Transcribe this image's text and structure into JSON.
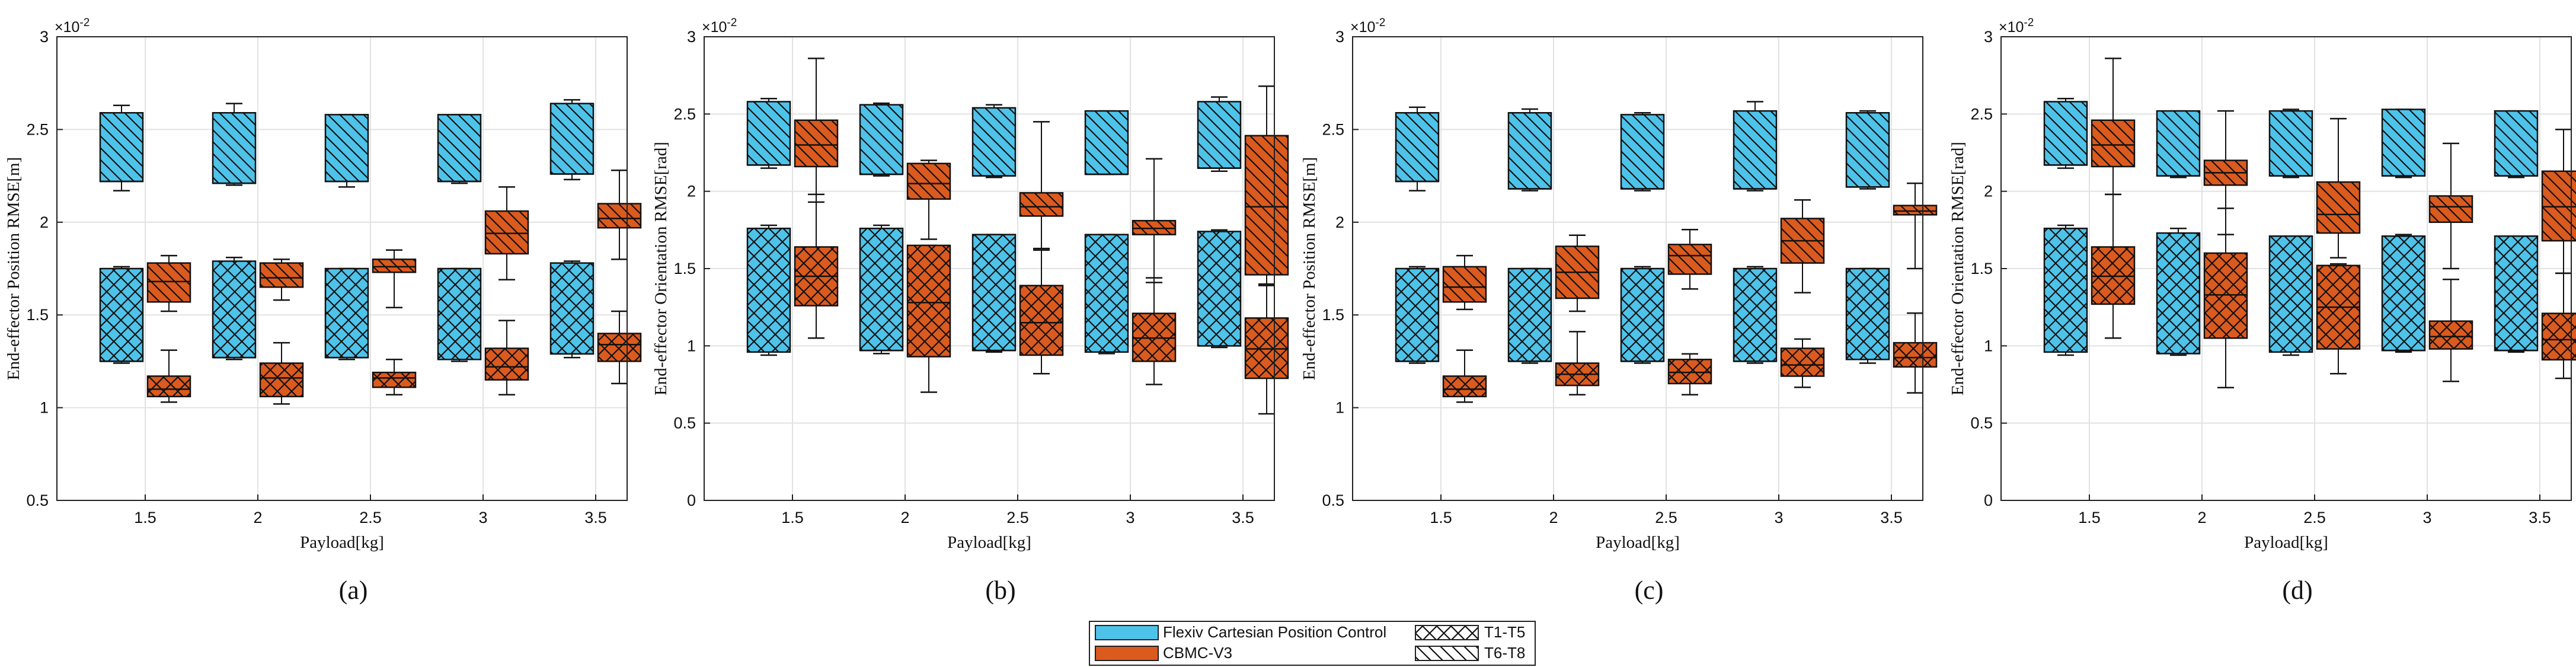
{
  "colors": {
    "flexiv": "#4ec3ea",
    "cbmc": "#db5a1e",
    "frame": "#222222",
    "grid": "#e2e2e2",
    "text": "#111111"
  },
  "legend": {
    "items": [
      {
        "label": "Flexiv Cartesian Position Control",
        "swatch": "flexiv"
      },
      {
        "label": "CBMC-V3",
        "swatch": "cbmc"
      },
      {
        "label": "T1-T5",
        "swatch": "hatch-cross"
      },
      {
        "label": "T6-T8",
        "swatch": "hatch-diag"
      }
    ]
  },
  "chart_data": [
    {
      "type": "box",
      "panel": "(a)",
      "xlabel": "Payload[kg]",
      "ylabel": "End-effector Position RMSE[m]",
      "exponent_label": "×10",
      "exponent_power": "-2",
      "categories": [
        "1.5",
        "2",
        "2.5",
        "3",
        "3.5"
      ],
      "ylim": [
        0.5,
        3
      ],
      "yticks": [
        "0.5",
        "1",
        "1.5",
        "2",
        "2.5",
        "3"
      ],
      "yticks_values": [
        0.5,
        1,
        1.5,
        2,
        2.5,
        3
      ],
      "series": [
        {
          "name": "Flexiv Cartesian Position Control",
          "group": "T6-T8",
          "offset": -1,
          "color": "flexiv",
          "hatch": "diag",
          "boxes": [
            [
              2.17,
              2.22,
              2.22,
              2.59,
              2.63
            ],
            [
              2.2,
              2.21,
              2.21,
              2.59,
              2.64
            ],
            [
              2.19,
              2.22,
              2.22,
              2.58,
              2.58
            ],
            [
              2.21,
              2.22,
              2.22,
              2.58,
              2.58
            ],
            [
              2.23,
              2.26,
              2.26,
              2.64,
              2.66
            ]
          ]
        },
        {
          "name": "Flexiv Cartesian Position Control",
          "group": "T1-T5",
          "offset": -1,
          "color": "flexiv",
          "hatch": "cross",
          "boxes": [
            [
              1.24,
              1.25,
              1.25,
              1.75,
              1.76
            ],
            [
              1.26,
              1.27,
              1.27,
              1.79,
              1.81
            ],
            [
              1.26,
              1.27,
              1.27,
              1.75,
              1.75
            ],
            [
              1.25,
              1.26,
              1.26,
              1.75,
              1.75
            ],
            [
              1.27,
              1.29,
              1.29,
              1.78,
              1.79
            ]
          ]
        },
        {
          "name": "CBMC-V3",
          "group": "T6-T8",
          "offset": 1,
          "color": "cbmc",
          "hatch": "diag",
          "boxes": [
            [
              1.52,
              1.57,
              1.68,
              1.78,
              1.82
            ],
            [
              1.58,
              1.65,
              1.7,
              1.78,
              1.8
            ],
            [
              1.54,
              1.73,
              1.76,
              1.8,
              1.85
            ],
            [
              1.69,
              1.83,
              1.94,
              2.06,
              2.19
            ],
            [
              1.8,
              1.97,
              2.02,
              2.1,
              2.28
            ]
          ]
        },
        {
          "name": "CBMC-V3",
          "group": "T1-T5",
          "offset": 1,
          "color": "cbmc",
          "hatch": "cross",
          "boxes": [
            [
              1.03,
              1.06,
              1.1,
              1.17,
              1.31
            ],
            [
              1.02,
              1.06,
              1.16,
              1.24,
              1.35
            ],
            [
              1.07,
              1.11,
              1.16,
              1.19,
              1.26
            ],
            [
              1.07,
              1.15,
              1.22,
              1.32,
              1.47
            ],
            [
              1.13,
              1.25,
              1.34,
              1.4,
              1.52
            ]
          ]
        }
      ]
    },
    {
      "type": "box",
      "panel": "(b)",
      "xlabel": "Payload[kg]",
      "ylabel": "End-effector Orientation RMSE[rad]",
      "exponent_label": "×10",
      "exponent_power": "-2",
      "categories": [
        "1.5",
        "2",
        "2.5",
        "3",
        "3.5"
      ],
      "ylim": [
        0,
        3
      ],
      "yticks": [
        "0",
        "0.5",
        "1",
        "1.5",
        "2",
        "2.5",
        "3"
      ],
      "yticks_values": [
        0,
        0.5,
        1,
        1.5,
        2,
        2.5,
        3
      ],
      "series": [
        {
          "name": "Flexiv Cartesian Position Control",
          "group": "T6-T8",
          "offset": -1,
          "color": "flexiv",
          "hatch": "diag",
          "boxes": [
            [
              2.15,
              2.17,
              2.17,
              2.58,
              2.6
            ],
            [
              2.1,
              2.11,
              2.11,
              2.56,
              2.57
            ],
            [
              2.09,
              2.1,
              2.1,
              2.54,
              2.56
            ],
            [
              2.11,
              2.11,
              2.11,
              2.52,
              2.52
            ],
            [
              2.13,
              2.15,
              2.15,
              2.58,
              2.61
            ]
          ]
        },
        {
          "name": "Flexiv Cartesian Position Control",
          "group": "T1-T5",
          "offset": -1,
          "color": "flexiv",
          "hatch": "cross",
          "boxes": [
            [
              0.94,
              0.96,
              0.96,
              1.76,
              1.78
            ],
            [
              0.95,
              0.97,
              0.97,
              1.76,
              1.78
            ],
            [
              0.96,
              0.97,
              0.97,
              1.72,
              1.72
            ],
            [
              0.95,
              0.96,
              0.96,
              1.72,
              1.72
            ],
            [
              0.99,
              1.0,
              1.0,
              1.74,
              1.75
            ]
          ]
        },
        {
          "name": "CBMC-V3",
          "group": "T6-T8",
          "offset": 1,
          "color": "cbmc",
          "hatch": "diag",
          "boxes": [
            [
              1.93,
              2.16,
              2.3,
              2.46,
              2.86
            ],
            [
              1.69,
              1.95,
              2.05,
              2.18,
              2.2
            ],
            [
              1.63,
              1.84,
              1.9,
              1.99,
              2.45
            ],
            [
              1.41,
              1.72,
              1.76,
              1.81,
              2.21
            ],
            [
              1.4,
              1.46,
              1.9,
              2.36,
              2.68
            ]
          ]
        },
        {
          "name": "CBMC-V3",
          "group": "T1-T5",
          "offset": 1,
          "color": "cbmc",
          "hatch": "cross",
          "boxes": [
            [
              1.05,
              1.26,
              1.45,
              1.64,
              1.98
            ],
            [
              0.7,
              0.93,
              1.28,
              1.65,
              1.65
            ],
            [
              0.82,
              0.94,
              1.15,
              1.39,
              1.62
            ],
            [
              0.75,
              0.9,
              1.05,
              1.21,
              1.44
            ],
            [
              0.56,
              0.79,
              0.98,
              1.18,
              1.39
            ]
          ]
        }
      ]
    },
    {
      "type": "box",
      "panel": "(c)",
      "xlabel": "Payload[kg]",
      "ylabel": "End-effector Position RMSE[m]",
      "exponent_label": "×10",
      "exponent_power": "-2",
      "categories": [
        "1.5",
        "2",
        "2.5",
        "3",
        "3.5"
      ],
      "ylim": [
        0.5,
        3
      ],
      "yticks": [
        "0.5",
        "1",
        "1.5",
        "2",
        "2.5",
        "3"
      ],
      "yticks_values": [
        0.5,
        1,
        1.5,
        2,
        2.5,
        3
      ],
      "series": [
        {
          "name": "Flexiv Cartesian Position Control",
          "group": "T6-T8",
          "offset": -1,
          "color": "flexiv",
          "hatch": "diag",
          "boxes": [
            [
              2.17,
              2.22,
              2.22,
              2.59,
              2.62
            ],
            [
              2.17,
              2.18,
              2.18,
              2.59,
              2.61
            ],
            [
              2.17,
              2.18,
              2.18,
              2.58,
              2.59
            ],
            [
              2.17,
              2.18,
              2.18,
              2.6,
              2.65
            ],
            [
              2.18,
              2.19,
              2.19,
              2.59,
              2.6
            ]
          ]
        },
        {
          "name": "Flexiv Cartesian Position Control",
          "group": "T1-T5",
          "offset": -1,
          "color": "flexiv",
          "hatch": "cross",
          "boxes": [
            [
              1.24,
              1.25,
              1.25,
              1.75,
              1.76
            ],
            [
              1.24,
              1.25,
              1.25,
              1.75,
              1.75
            ],
            [
              1.24,
              1.25,
              1.25,
              1.75,
              1.76
            ],
            [
              1.24,
              1.25,
              1.25,
              1.75,
              1.76
            ],
            [
              1.24,
              1.26,
              1.26,
              1.75,
              1.75
            ]
          ]
        },
        {
          "name": "CBMC-V3",
          "group": "T6-T8",
          "offset": 1,
          "color": "cbmc",
          "hatch": "diag",
          "boxes": [
            [
              1.53,
              1.57,
              1.65,
              1.76,
              1.82
            ],
            [
              1.52,
              1.59,
              1.73,
              1.87,
              1.93
            ],
            [
              1.64,
              1.72,
              1.82,
              1.88,
              1.96
            ],
            [
              1.62,
              1.78,
              1.9,
              2.02,
              2.12
            ],
            [
              1.75,
              2.04,
              2.06,
              2.09,
              2.21
            ]
          ]
        },
        {
          "name": "CBMC-V3",
          "group": "T1-T5",
          "offset": 1,
          "color": "cbmc",
          "hatch": "cross",
          "boxes": [
            [
              1.03,
              1.06,
              1.1,
              1.17,
              1.31
            ],
            [
              1.07,
              1.12,
              1.18,
              1.24,
              1.41
            ],
            [
              1.07,
              1.13,
              1.19,
              1.26,
              1.29
            ],
            [
              1.11,
              1.17,
              1.23,
              1.32,
              1.37
            ],
            [
              1.08,
              1.22,
              1.27,
              1.35,
              1.51
            ]
          ]
        }
      ]
    },
    {
      "type": "box",
      "panel": "(d)",
      "xlabel": "Payload[kg]",
      "ylabel": "End-effector Orientation RMSE[rad]",
      "exponent_label": "×10",
      "exponent_power": "-2",
      "categories": [
        "1.5",
        "2",
        "2.5",
        "3",
        "3.5"
      ],
      "ylim": [
        0,
        3
      ],
      "yticks": [
        "0",
        "0.5",
        "1",
        "1.5",
        "2",
        "2.5",
        "3"
      ],
      "yticks_values": [
        0,
        0.5,
        1,
        1.5,
        2,
        2.5,
        3
      ],
      "series": [
        {
          "name": "Flexiv Cartesian Position Control",
          "group": "T6-T8",
          "offset": -1,
          "color": "flexiv",
          "hatch": "diag",
          "boxes": [
            [
              2.15,
              2.17,
              2.17,
              2.58,
              2.6
            ],
            [
              2.09,
              2.1,
              2.1,
              2.52,
              2.52
            ],
            [
              2.09,
              2.1,
              2.1,
              2.52,
              2.53
            ],
            [
              2.09,
              2.1,
              2.1,
              2.53,
              2.53
            ],
            [
              2.09,
              2.1,
              2.1,
              2.52,
              2.52
            ]
          ]
        },
        {
          "name": "Flexiv Cartesian Position Control",
          "group": "T1-T5",
          "offset": -1,
          "color": "flexiv",
          "hatch": "cross",
          "boxes": [
            [
              0.94,
              0.96,
              0.96,
              1.76,
              1.78
            ],
            [
              0.94,
              0.95,
              0.95,
              1.73,
              1.76
            ],
            [
              0.94,
              0.96,
              0.96,
              1.71,
              1.71
            ],
            [
              0.96,
              0.97,
              0.97,
              1.71,
              1.72
            ],
            [
              0.96,
              0.97,
              0.97,
              1.71,
              1.71
            ]
          ]
        },
        {
          "name": "CBMC-V3",
          "group": "T6-T8",
          "offset": 1,
          "color": "cbmc",
          "hatch": "diag",
          "boxes": [
            [
              1.98,
              2.16,
              2.3,
              2.46,
              2.86
            ],
            [
              1.72,
              2.04,
              2.12,
              2.2,
              2.52
            ],
            [
              1.57,
              1.73,
              1.85,
              2.06,
              2.47
            ],
            [
              1.5,
              1.8,
              1.9,
              1.97,
              2.31
            ],
            [
              1.47,
              1.68,
              1.9,
              2.13,
              2.4
            ]
          ]
        },
        {
          "name": "CBMC-V3",
          "group": "T1-T5",
          "offset": 1,
          "color": "cbmc",
          "hatch": "cross",
          "boxes": [
            [
              1.05,
              1.27,
              1.45,
              1.64,
              1.98
            ],
            [
              0.73,
              1.05,
              1.33,
              1.6,
              1.89
            ],
            [
              0.82,
              0.98,
              1.25,
              1.52,
              1.53
            ],
            [
              0.77,
              0.98,
              1.06,
              1.16,
              1.43
            ],
            [
              0.79,
              0.91,
              1.04,
              1.21,
              1.47
            ]
          ]
        }
      ]
    }
  ]
}
